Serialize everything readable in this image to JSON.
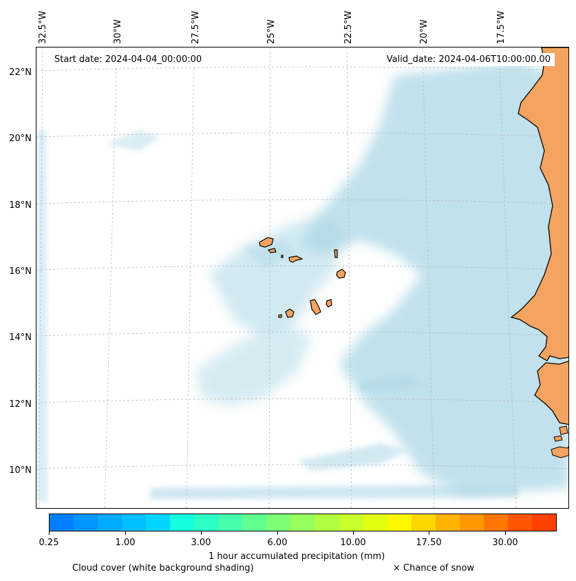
{
  "map": {
    "start_date": "Start date: 2024-04-04_00:00:00",
    "valid_date": "Valid_date: 2024-04-06T10:00:00.00",
    "longitude_labels": [
      "32.5°W",
      "30°W",
      "27.5°W",
      "25°W",
      "22.5°W",
      "20°W",
      "17.5°W"
    ],
    "latitude_labels": [
      "22°N",
      "20°N",
      "18°N",
      "16°N",
      "14°N",
      "12°N",
      "10°N"
    ],
    "land_color": "#f4a460",
    "cloud_color": "#add8e6"
  },
  "colorbar": {
    "colors": [
      "#0080ff",
      "#0095ff",
      "#00aaff",
      "#00bfff",
      "#00d5ff",
      "#13ffe0",
      "#2cffc4",
      "#45ffac",
      "#60ff90",
      "#7cff75",
      "#97ff5c",
      "#b0ff42",
      "#c9ff2a",
      "#e2ff13",
      "#fff700",
      "#ffd500",
      "#ffb300",
      "#ff9900",
      "#ff7700",
      "#ff5500",
      "#ff4000"
    ],
    "tick_labels": [
      "0.25",
      "1.00",
      "3.00",
      "6.00",
      "10.00",
      "17.50",
      "30.00"
    ],
    "label": "1 hour accumulated precipitation (mm)"
  },
  "legend": {
    "cloud_cover": "Cloud cover (white background shading)",
    "snow": "× Chance of snow"
  }
}
